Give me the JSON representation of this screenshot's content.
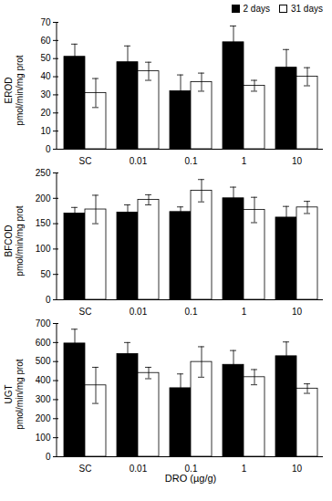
{
  "chart_data": [
    {
      "type": "bar",
      "y_label": "EROD\npmol/min/mg prot",
      "categories": [
        "SC",
        "0.01",
        "0.1",
        "1",
        "10"
      ],
      "series": [
        {
          "name": "2 days",
          "color": "#000000",
          "values": [
            51,
            48,
            32,
            59,
            45
          ],
          "errors": [
            7,
            9,
            9,
            9,
            10
          ]
        },
        {
          "name": "31 days",
          "color": "#ffffff",
          "values": [
            31,
            43,
            37,
            35,
            40
          ],
          "errors": [
            8,
            5,
            5,
            3,
            5
          ]
        }
      ],
      "ylim": [
        0,
        70
      ],
      "yticks": [
        0,
        10,
        20,
        30,
        40,
        50,
        60,
        70
      ],
      "legend": "top-right"
    },
    {
      "type": "bar",
      "y_label": "BFCOD\npmol/min/mg prot",
      "categories": [
        "SC",
        "0.01",
        "0.1",
        "1",
        "10"
      ],
      "series": [
        {
          "name": "2 days",
          "color": "#000000",
          "values": [
            170,
            172,
            173,
            200,
            162
          ],
          "errors": [
            12,
            15,
            10,
            22,
            22
          ]
        },
        {
          "name": "31 days",
          "color": "#ffffff",
          "values": [
            178,
            197,
            215,
            177,
            182
          ],
          "errors": [
            28,
            10,
            22,
            25,
            12
          ]
        }
      ],
      "ylim": [
        0,
        250
      ],
      "yticks": [
        0,
        50,
        100,
        150,
        200,
        250
      ]
    },
    {
      "type": "bar",
      "y_label": "UGT\npmol/min/mg prot",
      "categories": [
        "SC",
        "0.01",
        "0.1",
        "1",
        "10"
      ],
      "series": [
        {
          "name": "2 days",
          "color": "#000000",
          "values": [
            595,
            540,
            360,
            483,
            528
          ],
          "errors": [
            75,
            60,
            75,
            75,
            75
          ]
        },
        {
          "name": "31 days",
          "color": "#ffffff",
          "values": [
            375,
            440,
            498,
            418,
            358
          ],
          "errors": [
            95,
            30,
            80,
            40,
            25
          ]
        }
      ],
      "ylim": [
        0,
        700
      ],
      "yticks": [
        0,
        100,
        200,
        300,
        400,
        500,
        600,
        700
      ],
      "x_label": "DRO (µg/g)"
    }
  ]
}
